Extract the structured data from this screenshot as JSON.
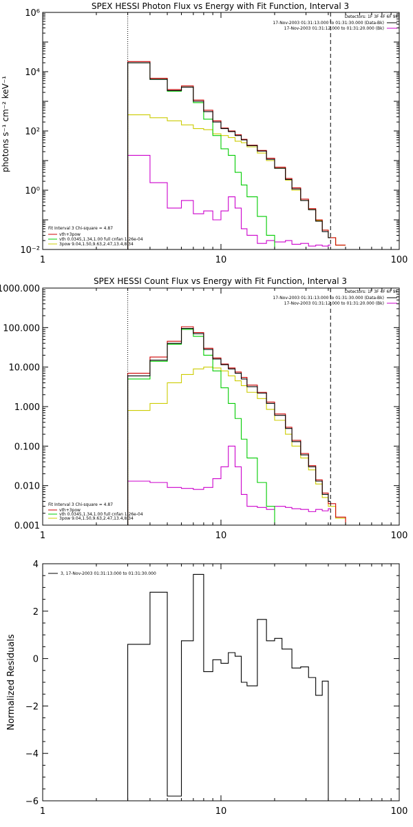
{
  "chart_data": [
    {
      "type": "line",
      "step": true,
      "title": "SPEX HESSI Photon Flux vs Energy with Fit Function, Interval 3",
      "xlabel": "",
      "ylabel": "photons s⁻¹ cm⁻² keV⁻¹",
      "xscale": "log",
      "yscale": "log",
      "xlim": [
        1,
        100
      ],
      "ylim": [
        0.01,
        1000000
      ],
      "xticks": [
        "1",
        "10",
        "100"
      ],
      "yticks": [
        "10⁻²",
        "10⁰",
        "10²",
        "10⁴",
        "10⁶"
      ],
      "vlines": [
        {
          "x": 3,
          "style": "dotted"
        },
        {
          "x": 41.2,
          "style": "dashed"
        }
      ],
      "header_text": [
        "Detectors: 1F 3F 4F 6F 9F",
        "17-Nov-2003 01:31:13.000 to 01:31:30.000 (Data-Bk)",
        "17-Nov-2003 01:31:12.000 to 01:31:20.000 (Bk)"
      ],
      "legend_lines": [
        {
          "text": "Fit Interval 3   Chi-square = 4.87",
          "color": ""
        },
        {
          "text": "vth+3pow",
          "color": "#cc0000"
        },
        {
          "text": "vth 0.0345,1.34,1.00  full cnfan 1.26e-04",
          "color": "#00cc00"
        },
        {
          "text": "3pow 9.04,1.50,9.63,2.47,13.4,8.34",
          "color": "#cccc00"
        }
      ],
      "series": [
        {
          "role": "data",
          "color": "#000000",
          "edges": [
            3,
            4,
            5,
            6,
            7,
            8,
            9,
            10,
            11,
            12,
            13,
            14,
            16,
            18,
            20,
            23,
            25,
            28,
            31,
            34,
            37,
            40,
            41.2
          ],
          "values": [
            20000,
            5500,
            2300,
            3000,
            1000,
            450,
            200,
            120,
            95,
            70,
            50,
            32,
            21,
            11,
            5.5,
            2.3,
            1.1,
            0.45,
            0.22,
            0.09,
            0.04,
            0.025
          ]
        },
        {
          "role": "model_total",
          "color": "#cc0000",
          "edges": [
            3,
            4,
            5,
            6,
            7,
            8,
            9,
            10,
            11,
            12,
            13,
            14,
            16,
            18,
            20,
            23,
            25,
            28,
            31,
            34,
            37,
            40,
            44,
            50
          ],
          "values": [
            22000,
            6000,
            2500,
            3300,
            1100,
            500,
            220,
            125,
            100,
            75,
            52,
            33,
            22,
            12,
            6,
            2.5,
            1.2,
            0.5,
            0.24,
            0.1,
            0.045,
            0.025,
            0.014
          ]
        },
        {
          "role": "thermal",
          "color": "#00cc00",
          "edges": [
            3,
            4,
            5,
            6,
            7,
            8,
            9,
            10,
            11,
            12,
            13,
            14,
            16,
            18,
            20,
            21
          ],
          "values": [
            20000,
            5500,
            2200,
            3000,
            900,
            250,
            70,
            25,
            15,
            4,
            1.5,
            0.6,
            0.13,
            0.03,
            0.005
          ]
        },
        {
          "role": "power_law",
          "color": "#cccc00",
          "edges": [
            3,
            4,
            5,
            6,
            7,
            8,
            9,
            10,
            11,
            12,
            13,
            14,
            16,
            18,
            20,
            23,
            25,
            28,
            31,
            34,
            37,
            40,
            44,
            50
          ],
          "values": [
            350,
            280,
            220,
            160,
            120,
            110,
            80,
            70,
            60,
            45,
            40,
            29,
            18,
            10,
            5.5,
            2.2,
            1,
            0.45,
            0.22,
            0.095,
            0.045,
            0.025,
            0.014
          ]
        },
        {
          "role": "background",
          "color": "#cc00cc",
          "edges": [
            3,
            4,
            5,
            6,
            7,
            8,
            9,
            10,
            11,
            12,
            13,
            14,
            16,
            18,
            20,
            23,
            25,
            28,
            31,
            34,
            37,
            40,
            41.2
          ],
          "values": [
            15,
            1.8,
            0.25,
            0.45,
            0.16,
            0.2,
            0.1,
            0.2,
            0.6,
            0.25,
            0.05,
            0.03,
            0.016,
            0.02,
            0.018,
            0.02,
            0.015,
            0.016,
            0.013,
            0.014,
            0.013,
            0.014
          ]
        }
      ]
    },
    {
      "type": "line",
      "step": true,
      "title": "SPEX HESSI Count Flux vs Energy with Fit Function, Interval 3",
      "xlabel": "",
      "ylabel": "",
      "xscale": "log",
      "yscale": "log",
      "xlim": [
        1,
        100
      ],
      "ylim": [
        0.001,
        1000
      ],
      "xticks": [
        "1",
        "10",
        "100"
      ],
      "yticks": [
        "0.001",
        "0.010",
        "0.100",
        "1.000",
        "10.000",
        "100.000",
        "1000.000"
      ],
      "vlines": [
        {
          "x": 3,
          "style": "dotted"
        },
        {
          "x": 41.2,
          "style": "dashed"
        }
      ],
      "header_text": [
        "Detectors: 1F 3F 4F 6F 9F",
        "17-Nov-2003 01:31:13.000 to 01:31:30.000 (Data-Bk)",
        "17-Nov-2003 01:31:12.000 to 01:31:20.000 (Bk)"
      ],
      "legend_lines": [
        {
          "text": "Fit Interval 3   Chi-square = 4.87",
          "color": ""
        },
        {
          "text": "vth+3pow",
          "color": "#cc0000"
        },
        {
          "text": "vth 0.0345,1.34,1.00  full cnfan 1.26e-04",
          "color": "#00cc00"
        },
        {
          "text": "3pow 9.04,1.50,9.63,2.47,13.4,8.34",
          "color": "#cccc00"
        }
      ],
      "series": [
        {
          "role": "data",
          "color": "#000000",
          "edges": [
            3,
            4,
            5,
            6,
            7,
            8,
            9,
            10,
            11,
            12,
            13,
            14,
            16,
            18,
            20,
            23,
            25,
            28,
            31,
            34,
            37,
            40,
            41.2
          ],
          "values": [
            6,
            15,
            40,
            95,
            70,
            28,
            16,
            11.5,
            9,
            7,
            5,
            3.2,
            2.2,
            1.2,
            0.6,
            0.28,
            0.13,
            0.06,
            0.03,
            0.013,
            0.006,
            0.004
          ]
        },
        {
          "role": "model_total",
          "color": "#cc0000",
          "edges": [
            3,
            4,
            5,
            6,
            7,
            8,
            9,
            10,
            11,
            12,
            13,
            14,
            16,
            18,
            20,
            23,
            25,
            28,
            31,
            34,
            37,
            40,
            44,
            50,
            55
          ],
          "values": [
            7,
            18,
            45,
            105,
            75,
            30,
            17,
            12,
            9.5,
            7.5,
            5.5,
            3.5,
            2.3,
            1.3,
            0.65,
            0.3,
            0.14,
            0.065,
            0.032,
            0.014,
            0.0065,
            0.0035,
            0.0016,
            0.0008
          ]
        },
        {
          "role": "thermal",
          "color": "#00cc00",
          "edges": [
            3,
            4,
            5,
            6,
            7,
            8,
            9,
            10,
            11,
            12,
            13,
            14,
            16,
            18,
            20,
            21
          ],
          "values": [
            5,
            14,
            38,
            90,
            60,
            20,
            8,
            3,
            1.2,
            0.5,
            0.15,
            0.05,
            0.012,
            0.003,
            0.0009
          ]
        },
        {
          "role": "power_law",
          "color": "#cccc00",
          "edges": [
            3,
            4,
            5,
            6,
            7,
            8,
            9,
            10,
            11,
            12,
            13,
            14,
            16,
            18,
            20,
            23,
            25,
            28,
            31,
            34,
            37,
            40,
            44,
            50,
            55
          ],
          "values": [
            0.8,
            1.2,
            4,
            6.5,
            9,
            10,
            9.5,
            8,
            6,
            4.5,
            3.4,
            2.3,
            1.6,
            0.85,
            0.45,
            0.2,
            0.1,
            0.05,
            0.025,
            0.011,
            0.005,
            0.003,
            0.0015,
            0.0008
          ]
        },
        {
          "role": "background",
          "color": "#cc00cc",
          "edges": [
            3,
            4,
            5,
            6,
            7,
            8,
            9,
            10,
            11,
            12,
            13,
            14,
            16,
            18,
            20,
            23,
            25,
            28,
            31,
            34,
            37,
            40,
            41.2
          ],
          "values": [
            0.013,
            0.012,
            0.009,
            0.0085,
            0.008,
            0.009,
            0.015,
            0.03,
            0.1,
            0.03,
            0.006,
            0.003,
            0.0028,
            0.0025,
            0.003,
            0.0028,
            0.0026,
            0.0025,
            0.0022,
            0.0025,
            0.0023,
            0.0026
          ]
        }
      ]
    },
    {
      "type": "line",
      "step": true,
      "title": "",
      "xlabel": "",
      "ylabel": "Normalized Residuals",
      "xscale": "log",
      "yscale": "linear",
      "xlim": [
        1,
        100
      ],
      "ylim": [
        -6,
        4
      ],
      "xticks": [
        "1",
        "10",
        "100"
      ],
      "yticks": [
        "−6",
        "−4",
        "−2",
        "0",
        "2",
        "4"
      ],
      "legend_lines": [
        {
          "text": "3, 17-Nov-2003 01:31:13.000 to 01:31:30.000",
          "color": "#000000"
        }
      ],
      "series": [
        {
          "role": "residuals",
          "color": "#000000",
          "edges": [
            3,
            4,
            5,
            6,
            7,
            8,
            9,
            10,
            11,
            12,
            13,
            14,
            16,
            18,
            20,
            22,
            25,
            28,
            31,
            34,
            37,
            40,
            41.2
          ],
          "values": [
            0.6,
            2.8,
            -5.8,
            0.75,
            3.55,
            -0.55,
            -0.05,
            -0.2,
            0.25,
            0.1,
            -1.0,
            -1.15,
            1.65,
            0.75,
            0.85,
            0.4,
            -0.4,
            -0.35,
            -0.8,
            -1.55,
            -0.95,
            -6
          ]
        }
      ]
    }
  ]
}
